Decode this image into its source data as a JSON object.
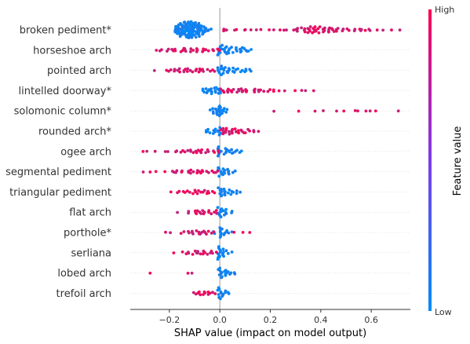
{
  "chart_data": {
    "type": "scatter",
    "subtype": "shap-beeswarm",
    "xlabel": "SHAP value (impact on model output)",
    "xlim": [
      -0.355,
      0.755
    ],
    "xticks": [
      -0.2,
      0.0,
      0.2,
      0.4,
      0.6
    ],
    "xtick_labels": [
      "−0.2",
      "0.0",
      "0.2",
      "0.4",
      "0.6"
    ],
    "zero_line": 0.0,
    "colorbar": {
      "title": "Feature value",
      "high_label": "High",
      "low_label": "Low",
      "low_color": "#008bfb",
      "high_color": "#ff0052"
    },
    "features": [
      {
        "name": "broken pediment*",
        "low_values": [
          -0.18,
          -0.17,
          -0.16,
          -0.15,
          -0.14,
          -0.13,
          -0.12,
          -0.11,
          -0.1,
          -0.09,
          -0.08,
          -0.07,
          -0.06,
          -0.05,
          -0.04
        ],
        "low_counts": [
          4,
          6,
          8,
          10,
          11,
          12,
          12,
          12,
          11,
          10,
          8,
          7,
          5,
          3,
          2
        ],
        "high_values": [
          0.01,
          0.02,
          0.03,
          0.05,
          0.07,
          0.09,
          0.11,
          0.13,
          0.15,
          0.17,
          0.19,
          0.21,
          0.23,
          0.25,
          0.27,
          0.29,
          0.31,
          0.33,
          0.35,
          0.37,
          0.39,
          0.41,
          0.43,
          0.45,
          0.47,
          0.49,
          0.51,
          0.53,
          0.55,
          0.57,
          0.59,
          0.62,
          0.65,
          0.68,
          0.71
        ],
        "high_counts": [
          2,
          1,
          1,
          1,
          1,
          1,
          1,
          1,
          1,
          1,
          1,
          1,
          1,
          1,
          1,
          1,
          3,
          4,
          5,
          5,
          5,
          4,
          4,
          3,
          3,
          2,
          2,
          2,
          2,
          2,
          2,
          1,
          1,
          1,
          1
        ]
      },
      {
        "name": "horseshoe arch",
        "low_values": [
          0.0,
          0.02,
          0.04,
          0.06,
          0.08,
          0.1,
          0.12
        ],
        "low_counts": [
          8,
          6,
          5,
          4,
          4,
          3,
          2
        ],
        "high_values": [
          -0.25,
          -0.23,
          -0.21,
          -0.19,
          -0.17,
          -0.15,
          -0.13,
          -0.11,
          -0.09,
          -0.07,
          -0.05,
          -0.03,
          -0.01
        ],
        "high_counts": [
          1,
          2,
          2,
          2,
          2,
          3,
          3,
          3,
          3,
          3,
          2,
          2,
          2
        ]
      },
      {
        "name": "pointed arch",
        "low_values": [
          0.0,
          0.02,
          0.04,
          0.06,
          0.08,
          0.1,
          0.12
        ],
        "low_counts": [
          7,
          5,
          4,
          4,
          3,
          3,
          2
        ],
        "high_values": [
          -0.26,
          -0.22,
          -0.2,
          -0.18,
          -0.16,
          -0.14,
          -0.12,
          -0.1,
          -0.08,
          -0.06,
          -0.04,
          -0.02
        ],
        "high_counts": [
          1,
          1,
          2,
          2,
          3,
          3,
          3,
          3,
          3,
          2,
          2,
          2
        ]
      },
      {
        "name": "lintelled doorway*",
        "low_values": [
          -0.07,
          -0.05,
          -0.03,
          -0.01,
          0.0
        ],
        "low_counts": [
          3,
          4,
          5,
          5,
          4
        ],
        "high_values": [
          0.01,
          0.03,
          0.05,
          0.07,
          0.09,
          0.11,
          0.13,
          0.15,
          0.17,
          0.19,
          0.21,
          0.23,
          0.25,
          0.3,
          0.32,
          0.34,
          0.38
        ],
        "high_counts": [
          3,
          3,
          3,
          3,
          3,
          3,
          3,
          2,
          2,
          2,
          2,
          1,
          1,
          1,
          1,
          1,
          1
        ]
      },
      {
        "name": "solomonic column*",
        "low_values": [
          -0.03,
          -0.02,
          -0.01,
          0.0,
          0.01,
          0.02
        ],
        "low_counts": [
          2,
          4,
          6,
          8,
          6,
          3
        ],
        "high_values": [
          0.22,
          0.31,
          0.37,
          0.41,
          0.46,
          0.49,
          0.53,
          0.55,
          0.57,
          0.59,
          0.62,
          0.7
        ],
        "high_counts": [
          1,
          1,
          1,
          1,
          1,
          1,
          1,
          1,
          1,
          1,
          1,
          1
        ]
      },
      {
        "name": "rounded arch*",
        "low_values": [
          -0.06,
          -0.04,
          -0.02,
          0.0
        ],
        "low_counts": [
          2,
          3,
          4,
          6
        ],
        "high_values": [
          0.01,
          0.03,
          0.05,
          0.07,
          0.09,
          0.11,
          0.13,
          0.16
        ],
        "high_counts": [
          5,
          5,
          4,
          4,
          3,
          3,
          2,
          1
        ]
      },
      {
        "name": "ogee arch",
        "low_values": [
          0.0,
          0.02,
          0.04,
          0.06,
          0.08
        ],
        "low_counts": [
          7,
          5,
          4,
          3,
          2
        ],
        "high_values": [
          -0.3,
          -0.28,
          -0.26,
          -0.22,
          -0.2,
          -0.17,
          -0.15,
          -0.13,
          -0.11,
          -0.09,
          -0.07,
          -0.05,
          -0.03,
          -0.01
        ],
        "high_counts": [
          1,
          1,
          1,
          1,
          1,
          2,
          2,
          2,
          3,
          3,
          3,
          3,
          2,
          2
        ]
      },
      {
        "name": "segmental pediment",
        "low_values": [
          0.0,
          0.02,
          0.04,
          0.06
        ],
        "low_counts": [
          7,
          5,
          4,
          2
        ],
        "high_values": [
          -0.31,
          -0.28,
          -0.25,
          -0.22,
          -0.19,
          -0.17,
          -0.15,
          -0.13,
          -0.11,
          -0.09,
          -0.07,
          -0.05,
          -0.03,
          -0.01
        ],
        "high_counts": [
          1,
          1,
          1,
          1,
          2,
          2,
          2,
          2,
          3,
          3,
          3,
          2,
          2,
          2
        ]
      },
      {
        "name": "triangular pediment",
        "low_values": [
          0.0,
          0.02,
          0.04,
          0.06,
          0.08
        ],
        "low_counts": [
          7,
          5,
          4,
          3,
          1
        ],
        "high_values": [
          -0.19,
          -0.16,
          -0.14,
          -0.12,
          -0.1,
          -0.08,
          -0.06,
          -0.04,
          -0.02
        ],
        "high_counts": [
          1,
          2,
          2,
          2,
          3,
          3,
          3,
          2,
          2
        ]
      },
      {
        "name": "flat arch",
        "low_values": [
          0.0,
          0.02,
          0.04
        ],
        "low_counts": [
          8,
          5,
          2
        ],
        "high_values": [
          -0.16,
          -0.12,
          -0.1,
          -0.08,
          -0.06,
          -0.04,
          -0.02
        ],
        "high_counts": [
          1,
          2,
          3,
          3,
          3,
          3,
          3
        ]
      },
      {
        "name": "porthole*",
        "low_values": [
          -0.02,
          0.0,
          0.02,
          0.04
        ],
        "low_counts": [
          2,
          8,
          4,
          2
        ],
        "high_values": [
          -0.21,
          -0.19,
          -0.15,
          -0.13,
          -0.11,
          -0.09,
          -0.07,
          -0.05,
          -0.03,
          0.06,
          0.09,
          0.11
        ],
        "high_counts": [
          1,
          1,
          2,
          2,
          3,
          3,
          3,
          3,
          2,
          1,
          1,
          1
        ]
      },
      {
        "name": "serliana",
        "low_values": [
          0.0,
          0.02,
          0.04
        ],
        "low_counts": [
          10,
          6,
          2
        ],
        "high_values": [
          -0.18,
          -0.14,
          -0.12,
          -0.1,
          -0.08,
          -0.06,
          -0.04,
          -0.02
        ],
        "high_counts": [
          1,
          2,
          2,
          3,
          3,
          3,
          3,
          2
        ]
      },
      {
        "name": "lobed arch",
        "low_values": [
          0.0,
          0.02,
          0.04,
          0.06
        ],
        "low_counts": [
          8,
          5,
          3,
          2
        ],
        "high_values": [
          -0.27,
          -0.12,
          -0.11
        ],
        "high_counts": [
          1,
          1,
          1
        ]
      },
      {
        "name": "trefoil arch",
        "low_values": [
          0.0,
          0.02,
          0.04
        ],
        "low_counts": [
          9,
          4,
          2
        ],
        "high_values": [
          -0.1,
          -0.08,
          -0.06,
          -0.04,
          -0.02
        ],
        "high_counts": [
          2,
          3,
          3,
          3,
          2
        ]
      }
    ]
  }
}
